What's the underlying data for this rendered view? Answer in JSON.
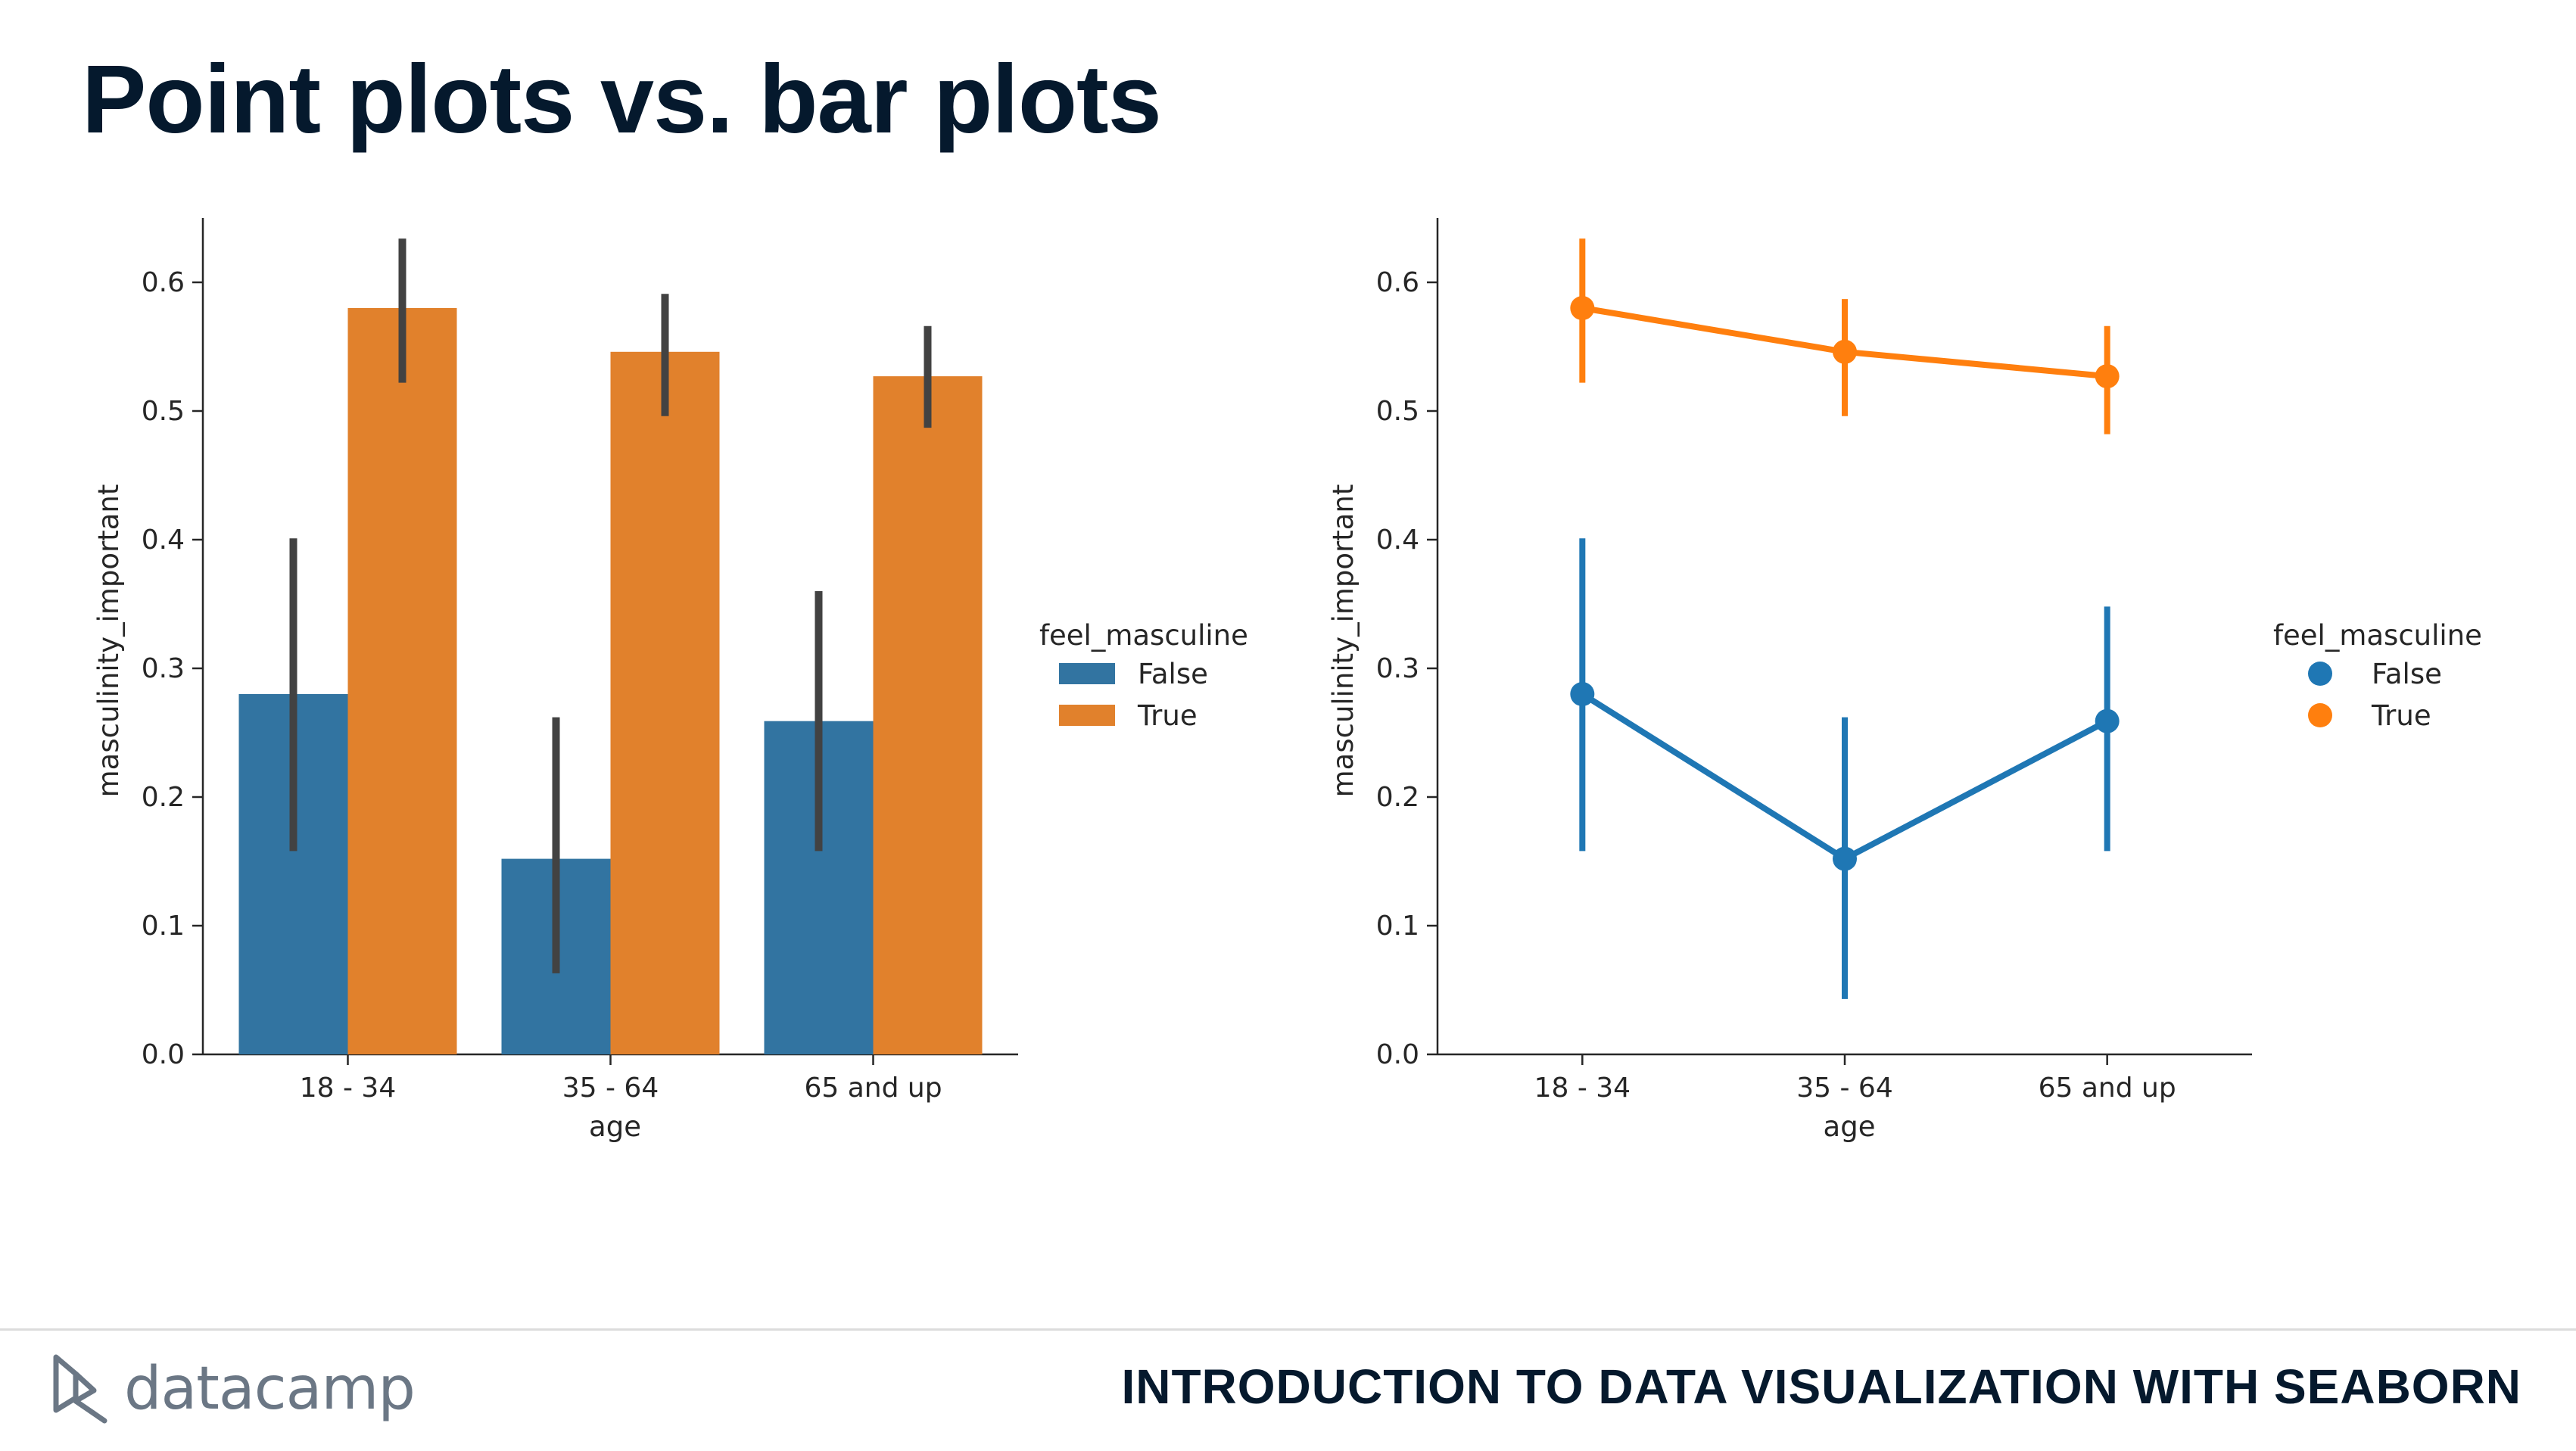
{
  "slide": {
    "title": "Point plots vs. bar plots",
    "footer_logo": "datacamp",
    "footer_course": "INTRODUCTION TO DATA VISUALIZATION WITH SEABORN"
  },
  "colors": {
    "false_series": "#3274a1",
    "true_series": "#e1812c",
    "point_false": "#1f77b4",
    "point_true": "#ff7f0e",
    "error_bar": "#424242",
    "title": "#05192d"
  },
  "chart_data": [
    {
      "type": "bar",
      "title": "",
      "xlabel": "age",
      "ylabel": "masculinity_important",
      "categories": [
        "18 - 34",
        "35 - 64",
        "65 and up"
      ],
      "ylim": [
        0,
        0.66
      ],
      "yticks": [
        "0.0",
        "0.1",
        "0.2",
        "0.3",
        "0.4",
        "0.5",
        "0.6"
      ],
      "legend_title": "feel_masculine",
      "legend_placement": "right",
      "series": [
        {
          "name": "False",
          "values": [
            0.28,
            0.152,
            0.259
          ],
          "ci_low": [
            0.158,
            0.063,
            0.158
          ],
          "ci_high": [
            0.401,
            0.262,
            0.36
          ]
        },
        {
          "name": "True",
          "values": [
            0.58,
            0.546,
            0.527
          ],
          "ci_low": [
            0.522,
            0.496,
            0.487
          ],
          "ci_high": [
            0.634,
            0.591,
            0.566
          ]
        }
      ]
    },
    {
      "type": "line",
      "title": "",
      "xlabel": "age",
      "ylabel": "masculinity_important",
      "categories": [
        "18 - 34",
        "35 - 64",
        "65 and up"
      ],
      "ylim": [
        0,
        0.66
      ],
      "yticks": [
        "0.0",
        "0.1",
        "0.2",
        "0.3",
        "0.4",
        "0.5",
        "0.6"
      ],
      "legend_title": "feel_masculine",
      "legend_placement": "right",
      "series": [
        {
          "name": "False",
          "values": [
            0.28,
            0.152,
            0.259
          ],
          "ci_low": [
            0.158,
            0.043,
            0.158
          ],
          "ci_high": [
            0.401,
            0.262,
            0.348
          ]
        },
        {
          "name": "True",
          "values": [
            0.58,
            0.546,
            0.527
          ],
          "ci_low": [
            0.522,
            0.496,
            0.482
          ],
          "ci_high": [
            0.634,
            0.587,
            0.566
          ]
        }
      ]
    }
  ]
}
